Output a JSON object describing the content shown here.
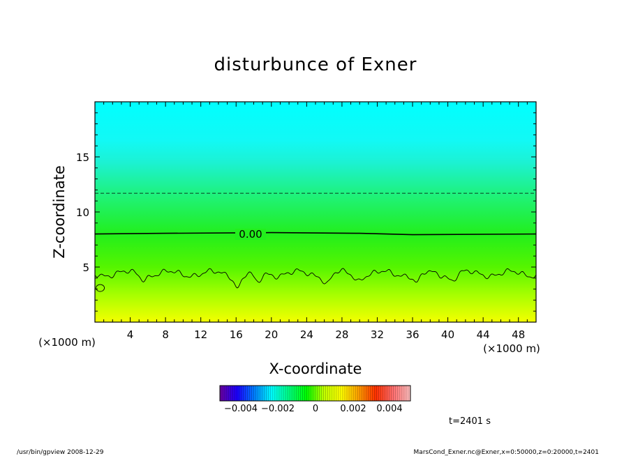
{
  "chart_data": {
    "type": "heatmap",
    "title": "disturbunce of Exner",
    "xlabel": "X-coordinate",
    "ylabel": "Z-coordinate",
    "x_unit": "(×1000 m)",
    "y_unit": "(×1000 m)",
    "xlim": [
      0,
      50
    ],
    "ylim": [
      0,
      20
    ],
    "xticks": [
      4,
      8,
      12,
      16,
      20,
      24,
      28,
      32,
      36,
      40,
      44,
      48
    ],
    "yticks": [
      5,
      10,
      15
    ],
    "contour_label": "0.00",
    "contours": [
      {
        "style": "dashed",
        "z": 11.7
      },
      {
        "style": "solid",
        "value": "0.00",
        "z": 8.0
      },
      {
        "style": "solid",
        "z_mean": 4.4
      }
    ],
    "color_field": [
      {
        "z": 0,
        "color": "#f4ff00"
      },
      {
        "z": 2.5,
        "color": "#a6ff00"
      },
      {
        "z": 5,
        "color": "#55f500"
      },
      {
        "z": 8,
        "color": "#22ef1c"
      },
      {
        "z": 11.5,
        "color": "#1ff27a"
      },
      {
        "z": 14.5,
        "color": "#1cf2d3"
      },
      {
        "z": 16.5,
        "color": "#12f9f5"
      },
      {
        "z": 20,
        "color": "#00ffff"
      }
    ],
    "colorbar": {
      "tick_labels": [
        "−0.004",
        "−0.002",
        "0",
        "0.002",
        "0.004"
      ],
      "colors": [
        "#6b00a0",
        "#1a00ff",
        "#0080ff",
        "#00ffff",
        "#00ff80",
        "#00ff00",
        "#c0ff00",
        "#ffff00",
        "#ffa000",
        "#ff3000",
        "#ff7070",
        "#ffc0c0"
      ]
    },
    "time_label": "t=2401 s",
    "footer_left": "/usr/bin/gpview   2008-12-29",
    "footer_right": "MarsCond_Exner.nc@Exner,x=0:50000,z=0:20000,t=2401"
  }
}
